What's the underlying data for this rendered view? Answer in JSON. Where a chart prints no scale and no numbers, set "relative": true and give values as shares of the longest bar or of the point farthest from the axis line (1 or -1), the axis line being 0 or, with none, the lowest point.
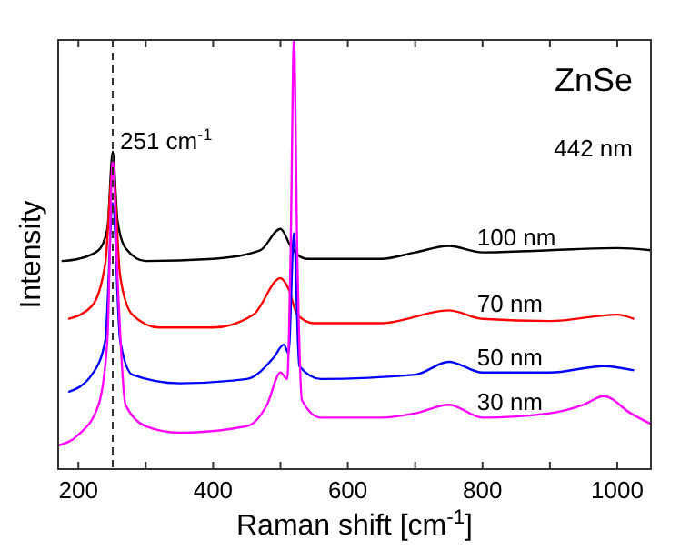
{
  "chart_data": {
    "type": "line",
    "relative": true,
    "xlabel": "Raman shift [cm$^{-1}$]",
    "ylabel": "Intensity",
    "xlim": [
      170,
      1050
    ],
    "xticks": [
      200,
      {
        "value": 300,
        "label": null
      },
      400,
      {
        "value": 500,
        "label": null
      },
      600,
      {
        "value": 700,
        "label": null
      },
      800,
      {
        "value": 900,
        "label": null
      },
      1000
    ],
    "legend": false,
    "line_style": "solid",
    "marker": "none",
    "annotations": [
      "ZnSe",
      "442 nm"
    ],
    "ref_lines": [
      {
        "axis": "x",
        "value": 251,
        "label": "251 cm$^{-1}$",
        "line_style": "dashed",
        "color": "#333333"
      }
    ],
    "series": [
      {
        "name": "100 nm",
        "color": "#000000",
        "x": [
          175,
          200,
          230,
          243,
          251,
          258,
          270,
          300,
          400,
          470,
          500,
          515,
          525,
          540,
          650,
          700,
          750,
          800,
          900,
          1000,
          1050
        ],
        "values": [
          0.485,
          0.49,
          0.51,
          0.56,
          0.74,
          0.58,
          0.515,
          0.485,
          0.49,
          0.51,
          0.56,
          0.52,
          0.5,
          0.49,
          0.49,
          0.505,
          0.52,
          0.505,
          0.51,
          0.515,
          0.51
        ]
      },
      {
        "name": "70 nm",
        "color": "#ff0000",
        "x": [
          185,
          220,
          240,
          251,
          262,
          280,
          320,
          400,
          460,
          500,
          512,
          525,
          550,
          650,
          750,
          800,
          900,
          1000,
          1025
        ],
        "values": [
          0.35,
          0.38,
          0.48,
          0.7,
          0.45,
          0.36,
          0.33,
          0.33,
          0.36,
          0.445,
          0.42,
          0.36,
          0.34,
          0.34,
          0.37,
          0.35,
          0.345,
          0.36,
          0.35
        ]
      },
      {
        "name": "50 nm",
        "color": "#0000ff",
        "x": [
          185,
          220,
          240,
          251,
          262,
          280,
          350,
          450,
          490,
          505,
          512,
          520,
          528,
          560,
          700,
          750,
          800,
          900,
          980,
          1025
        ],
        "values": [
          0.18,
          0.22,
          0.3,
          0.62,
          0.3,
          0.22,
          0.2,
          0.21,
          0.26,
          0.29,
          0.27,
          0.55,
          0.24,
          0.21,
          0.22,
          0.25,
          0.225,
          0.225,
          0.24,
          0.23
        ]
      },
      {
        "name": "30 nm",
        "color": "#ff00ff",
        "x": [
          170,
          200,
          230,
          243,
          251,
          258,
          270,
          300,
          350,
          450,
          480,
          500,
          510,
          515,
          520,
          525,
          532,
          560,
          650,
          700,
          750,
          800,
          900,
          950,
          980,
          1020,
          1050
        ],
        "values": [
          0.055,
          0.08,
          0.15,
          0.3,
          0.72,
          0.45,
          0.15,
          0.1,
          0.085,
          0.1,
          0.15,
          0.225,
          0.21,
          0.5,
          1,
          0.5,
          0.16,
          0.12,
          0.12,
          0.13,
          0.15,
          0.12,
          0.13,
          0.15,
          0.17,
          0.13,
          0.105
        ]
      }
    ]
  }
}
